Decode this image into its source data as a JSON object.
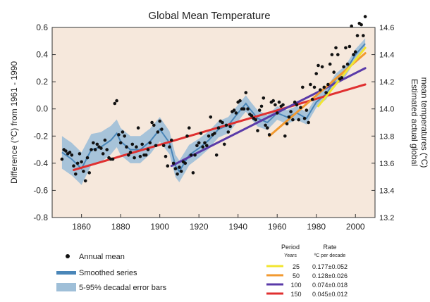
{
  "chart_data": {
    "type": "line",
    "title": "Global Mean Temperature",
    "ylabel": "Difference (°C) from 1961 - 1990",
    "y2label_line1": "Estimated actual global",
    "y2label_line2": "mean temperatures (°C)",
    "xlim": [
      1845,
      2010
    ],
    "ylim": [
      -0.8,
      0.6
    ],
    "y2lim": [
      13.2,
      14.6
    ],
    "xticks": [
      1860,
      1880,
      1900,
      1920,
      1940,
      1960,
      1980,
      2000
    ],
    "yticks": [
      "0.6",
      "0.4",
      "0.2",
      "0.0",
      "-0.2",
      "-0.4",
      "-0.6",
      "-0.8"
    ],
    "y2ticks": [
      "14.6",
      "14.4",
      "14.2",
      "14.0",
      "13.8",
      "13.6",
      "13.4",
      "13.2"
    ],
    "colors": {
      "plot_bg": "#f6e8dc",
      "band": "#9fbfd8",
      "smooth": "#4a86b8",
      "dots": "#111111"
    },
    "annual_mean": {
      "name": "Annual mean",
      "x": [
        1850,
        1851,
        1852,
        1853,
        1854,
        1855,
        1856,
        1857,
        1858,
        1859,
        1860,
        1861,
        1862,
        1863,
        1864,
        1865,
        1866,
        1867,
        1868,
        1869,
        1870,
        1871,
        1872,
        1873,
        1874,
        1875,
        1876,
        1877,
        1878,
        1879,
        1880,
        1881,
        1882,
        1883,
        1884,
        1885,
        1886,
        1887,
        1888,
        1889,
        1890,
        1891,
        1892,
        1893,
        1894,
        1895,
        1896,
        1897,
        1898,
        1899,
        1900,
        1901,
        1902,
        1903,
        1904,
        1905,
        1906,
        1907,
        1908,
        1909,
        1910,
        1911,
        1912,
        1913,
        1914,
        1915,
        1916,
        1917,
        1918,
        1919,
        1920,
        1921,
        1922,
        1923,
        1924,
        1925,
        1926,
        1927,
        1928,
        1929,
        1930,
        1931,
        1932,
        1933,
        1934,
        1935,
        1936,
        1937,
        1938,
        1939,
        1940,
        1941,
        1942,
        1943,
        1944,
        1945,
        1946,
        1947,
        1948,
        1949,
        1950,
        1951,
        1952,
        1953,
        1954,
        1955,
        1956,
        1957,
        1958,
        1959,
        1960,
        1961,
        1962,
        1963,
        1964,
        1965,
        1966,
        1967,
        1968,
        1969,
        1970,
        1971,
        1972,
        1973,
        1974,
        1975,
        1976,
        1977,
        1978,
        1979,
        1980,
        1981,
        1982,
        1983,
        1984,
        1985,
        1986,
        1987,
        1988,
        1989,
        1990,
        1991,
        1992,
        1993,
        1994,
        1995,
        1996,
        1997,
        1998,
        1999,
        2000,
        2001,
        2002,
        2003,
        2004,
        2005
      ],
      "y": [
        -0.37,
        -0.3,
        -0.31,
        -0.33,
        -0.32,
        -0.34,
        -0.42,
        -0.48,
        -0.4,
        -0.33,
        -0.39,
        -0.46,
        -0.53,
        -0.36,
        -0.47,
        -0.3,
        -0.25,
        -0.3,
        -0.26,
        -0.28,
        -0.29,
        -0.33,
        -0.23,
        -0.3,
        -0.36,
        -0.37,
        -0.37,
        0.04,
        0.06,
        -0.19,
        -0.25,
        -0.17,
        -0.2,
        -0.28,
        -0.34,
        -0.32,
        -0.26,
        -0.36,
        -0.28,
        -0.14,
        -0.35,
        -0.26,
        -0.34,
        -0.34,
        -0.3,
        -0.25,
        -0.1,
        -0.12,
        -0.27,
        -0.17,
        -0.09,
        -0.15,
        -0.27,
        -0.35,
        -0.42,
        -0.28,
        -0.23,
        -0.4,
        -0.44,
        -0.48,
        -0.43,
        -0.46,
        -0.39,
        -0.4,
        -0.2,
        -0.14,
        -0.34,
        -0.47,
        -0.34,
        -0.27,
        -0.25,
        -0.18,
        -0.28,
        -0.25,
        -0.27,
        -0.2,
        -0.06,
        -0.19,
        -0.18,
        -0.34,
        -0.14,
        -0.09,
        -0.1,
        -0.26,
        -0.12,
        -0.17,
        -0.13,
        -0.02,
        -0.01,
        -0.03,
        0.05,
        0.06,
        0.0,
        0.0,
        0.12,
        0.0,
        -0.04,
        -0.05,
        -0.07,
        -0.08,
        -0.16,
        -0.01,
        0.02,
        0.08,
        -0.12,
        -0.14,
        -0.19,
        0.05,
        0.06,
        0.03,
        -0.03,
        0.05,
        0.02,
        0.03,
        -0.2,
        -0.11,
        -0.06,
        -0.02,
        -0.08,
        0.05,
        0.03,
        -0.08,
        0.01,
        0.16,
        -0.07,
        -0.01,
        -0.1,
        0.18,
        0.07,
        0.16,
        0.26,
        0.32,
        0.14,
        0.31,
        0.16,
        0.12,
        0.18,
        0.33,
        0.4,
        0.27,
        0.45,
        0.4,
        0.22,
        0.23,
        0.31,
        0.45,
        0.33,
        0.46,
        0.61,
        0.4,
        0.42,
        0.54,
        0.63,
        0.62,
        0.54,
        0.68
      ]
    },
    "smoothed": {
      "name": "Smoothed series",
      "x": [
        1850,
        1855,
        1860,
        1865,
        1870,
        1875,
        1878,
        1880,
        1885,
        1890,
        1895,
        1900,
        1905,
        1908,
        1910,
        1915,
        1920,
        1925,
        1930,
        1935,
        1940,
        1944,
        1946,
        1950,
        1955,
        1960,
        1965,
        1970,
        1975,
        1980,
        1985,
        1990,
        1995,
        2000,
        2005
      ],
      "y": [
        -0.32,
        -0.37,
        -0.44,
        -0.3,
        -0.28,
        -0.23,
        -0.18,
        -0.24,
        -0.3,
        -0.3,
        -0.24,
        -0.15,
        -0.25,
        -0.42,
        -0.46,
        -0.34,
        -0.29,
        -0.23,
        -0.15,
        -0.12,
        -0.03,
        0.04,
        0.0,
        -0.07,
        -0.1,
        -0.03,
        -0.06,
        -0.03,
        -0.07,
        0.05,
        0.11,
        0.22,
        0.28,
        0.4,
        0.48
      ]
    },
    "band_halfwidth": {
      "name": "5-95% decadal error bars",
      "x": [
        1850,
        1860,
        1870,
        1880,
        1890,
        1900,
        1910,
        1920,
        1930,
        1940,
        1950,
        1960,
        1970,
        1980,
        1990,
        2000,
        2005
      ],
      "w": [
        0.12,
        0.12,
        0.11,
        0.1,
        0.1,
        0.09,
        0.08,
        0.07,
        0.06,
        0.06,
        0.06,
        0.05,
        0.05,
        0.04,
        0.04,
        0.04,
        0.04
      ]
    },
    "trends": [
      {
        "period": "25",
        "rate": "0.177±0.052",
        "color": "#f2e530",
        "x": [
          1981,
          2005
        ],
        "y": [
          0.02,
          0.45
        ]
      },
      {
        "period": "50",
        "rate": "0.128±0.026",
        "color": "#f29a30",
        "x": [
          1956,
          2005
        ],
        "y": [
          -0.2,
          0.41
        ]
      },
      {
        "period": "100",
        "rate": "0.074±0.018",
        "color": "#5a3aa8",
        "x": [
          1906,
          2005
        ],
        "y": [
          -0.42,
          0.3
        ]
      },
      {
        "period": "150",
        "rate": "0.045±0.012",
        "color": "#e03030",
        "x": [
          1856,
          2005
        ],
        "y": [
          -0.45,
          0.18
        ]
      }
    ],
    "legend": {
      "annual": "Annual mean",
      "smooth": "Smoothed series",
      "band": "5-95% decadal error bars",
      "period_header": "Period",
      "period_sub": "Years",
      "rate_header": "Rate",
      "rate_sub": "ºC per decade"
    }
  }
}
